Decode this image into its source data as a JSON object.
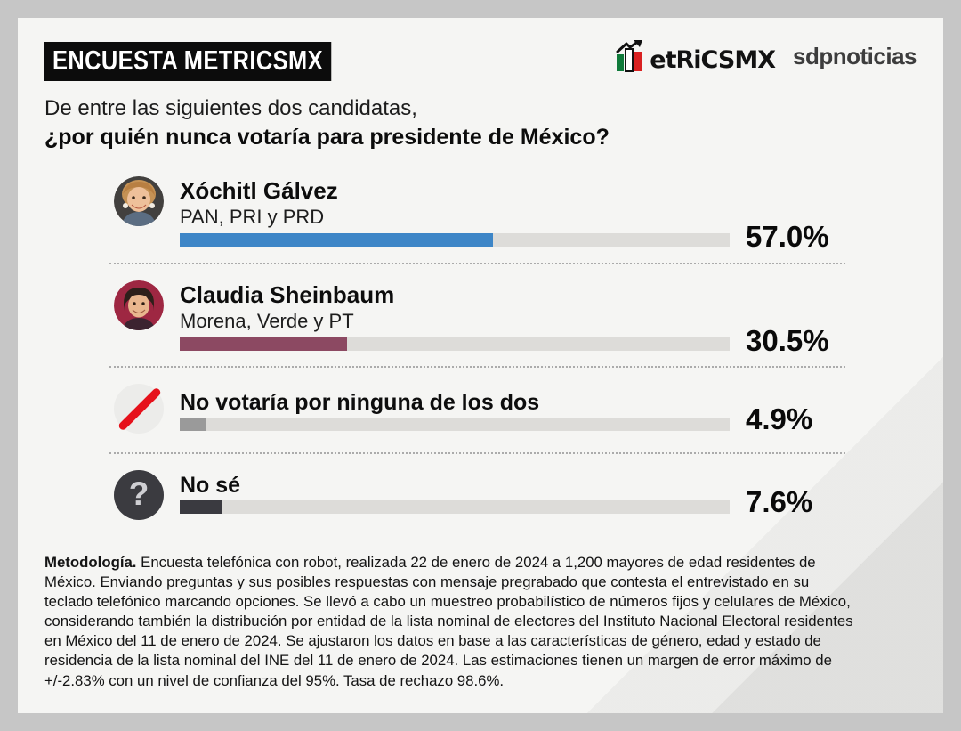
{
  "header": {
    "badge": "ENCUESTA METRICSMX",
    "brand": "etRiCSMX",
    "partner": "sdpnoticias"
  },
  "question": {
    "line1": "De entre las siguientes dos candidatas,",
    "line2": "¿por quién nunca votaría para presidente de México?"
  },
  "rows": [
    {
      "name": "Xóchitl Gálvez",
      "party": "PAN, PRI y PRD",
      "value": 57.0,
      "label": "57.0%",
      "bar_color": "#3e86c7",
      "avatar": "xochitl-galvez-photo"
    },
    {
      "name": "Claudia Sheinbaum",
      "party": "Morena, Verde y PT",
      "value": 30.5,
      "label": "30.5%",
      "bar_color": "#8c4962",
      "avatar": "claudia-sheinbaum-photo"
    },
    {
      "name": "No votaría por ninguna de los dos",
      "party": "",
      "value": 4.9,
      "label": "4.9%",
      "bar_color": "#9a9a9a",
      "icon": "slash"
    },
    {
      "name": "No sé",
      "party": "",
      "value": 7.6,
      "label": "7.6%",
      "bar_color": "#3a3a40",
      "icon": "question",
      "icon_glyph": "?"
    }
  ],
  "methodology": {
    "title": "Metodología.",
    "lines": [
      " Encuesta telefónica con robot, realizada 22 de enero de 2024 a 1,200 mayores de edad residentes de",
      "México. Enviando preguntas y sus posibles respuestas con mensaje pregrabado que contesta el entrevistado en su",
      "teclado telefónico marcando opciones. Se llevó a cabo un muestreo probabilístico de números fijos y celulares de México,",
      "considerando también la distribución por entidad de la lista nominal de electores del Instituto Nacional Electoral residentes",
      "en México del 11 de enero de 2024. Se ajustaron los datos en base a las características de género, edad y estado de",
      "residencia de la lista nominal del INE del 11 de enero de 2024. Las estimaciones tienen un margen de error máximo de",
      "+/-2.83% con un nivel de confianza del 95%. Tasa de rechazo 98.6%."
    ]
  },
  "colors": {
    "page_bg": "#c6c6c6",
    "card_bg": "#f5f5f3",
    "track": "#dddcd9",
    "bar_blue": "#3e86c7",
    "bar_maroon": "#8c4962",
    "bar_gray": "#9a9a9a",
    "bar_dark": "#3a3a40",
    "slash_red": "#e6111b",
    "badge_bg": "#0c0c0c"
  },
  "chart_data": {
    "type": "bar",
    "orientation": "horizontal",
    "title": "De entre las siguientes dos candidatas, ¿por quién nunca votaría para presidente de México?",
    "categories": [
      "Xóchitl Gálvez (PAN, PRI y PRD)",
      "Claudia Sheinbaum (Morena, Verde y PT)",
      "No votaría por ninguna de los dos",
      "No sé"
    ],
    "values": [
      57.0,
      30.5,
      4.9,
      7.6
    ],
    "unit": "%",
    "xlim": [
      0,
      100
    ],
    "data_labels": [
      "57.0%",
      "30.5%",
      "4.9%",
      "7.6%"
    ],
    "bar_colors": [
      "#3e86c7",
      "#8c4962",
      "#9a9a9a",
      "#3a3a40"
    ],
    "grid": false,
    "legend": false
  }
}
